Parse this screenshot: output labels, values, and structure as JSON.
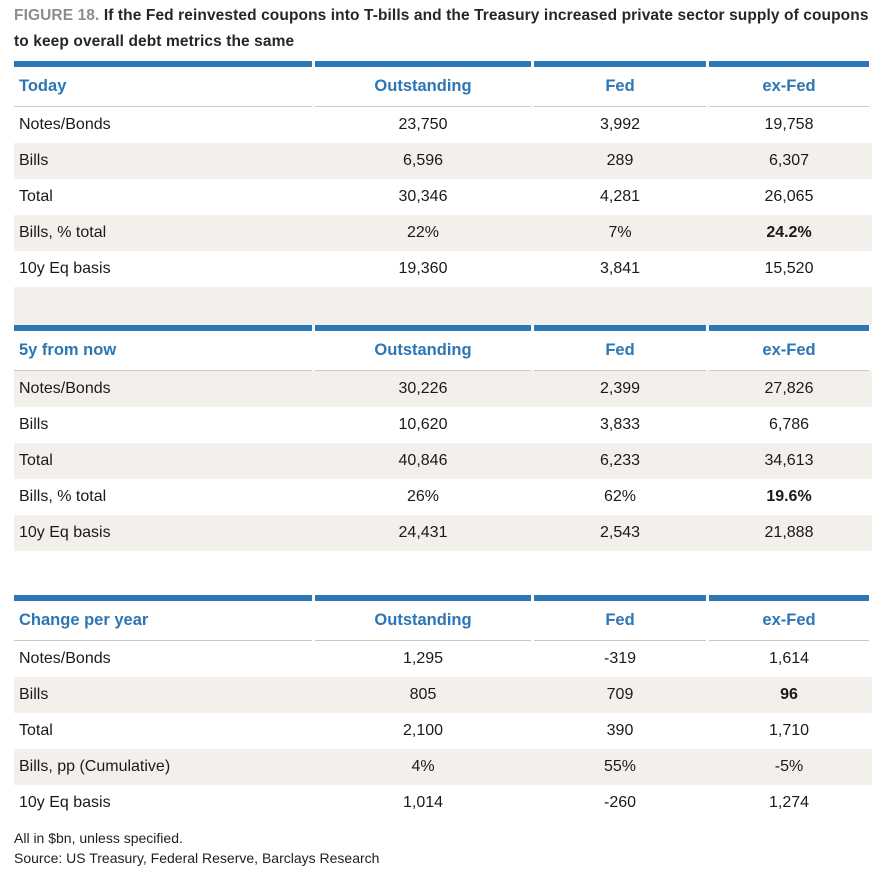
{
  "figure": {
    "label": "FIGURE 18.",
    "title": "If the Fed reinvested coupons into T-bills and the Treasury increased private sector supply of coupons to keep overall debt metrics the same"
  },
  "tables": [
    {
      "name": "Today",
      "columns": [
        "Outstanding",
        "Fed",
        "ex-Fed"
      ],
      "rows": [
        {
          "label": "Notes/Bonds",
          "values": [
            "23,750",
            "3,992",
            "19,758"
          ]
        },
        {
          "label": "Bills",
          "values": [
            "6,596",
            "289",
            "6,307"
          ]
        },
        {
          "label": "Total",
          "values": [
            "30,346",
            "4,281",
            "26,065"
          ]
        },
        {
          "label": "Bills, % total",
          "values": [
            "22%",
            "7%",
            "24.2%"
          ],
          "bold_value_index": 2
        },
        {
          "label": "10y Eq basis",
          "values": [
            "19,360",
            "3,841",
            "15,520"
          ]
        }
      ]
    },
    {
      "name": "5y from now",
      "columns": [
        "Outstanding",
        "Fed",
        "ex-Fed"
      ],
      "rows": [
        {
          "label": "Notes/Bonds",
          "values": [
            "30,226",
            "2,399",
            "27,826"
          ]
        },
        {
          "label": "Bills",
          "values": [
            "10,620",
            "3,833",
            "6,786"
          ]
        },
        {
          "label": "Total",
          "values": [
            "40,846",
            "6,233",
            "34,613"
          ]
        },
        {
          "label": "Bills, % total",
          "values": [
            "26%",
            "62%",
            "19.6%"
          ],
          "bold_value_index": 2
        },
        {
          "label": "10y Eq basis",
          "values": [
            "24,431",
            "2,543",
            "21,888"
          ]
        }
      ]
    },
    {
      "name": "Change per year",
      "columns": [
        "Outstanding",
        "Fed",
        "ex-Fed"
      ],
      "rows": [
        {
          "label": "Notes/Bonds",
          "values": [
            "1,295",
            "-319",
            "1,614"
          ]
        },
        {
          "label": "Bills",
          "values": [
            "805",
            "709",
            "96"
          ],
          "bold_value_index": 2
        },
        {
          "label": "Total",
          "values": [
            "2,100",
            "390",
            "1,710"
          ]
        },
        {
          "label": "Bills, pp (Cumulative)",
          "values": [
            "4%",
            "55%",
            "-5%"
          ]
        },
        {
          "label": "10y Eq basis",
          "values": [
            "1,014",
            "-260",
            "1,274"
          ]
        }
      ]
    }
  ],
  "footnotes": {
    "note": "All in $bn, unless specified.",
    "source": "Source: US Treasury, Federal Reserve, Barclays Research"
  },
  "colors": {
    "accent_blue": "#2c76b5",
    "stripe_beige": "#f3f0ec",
    "rule_gray": "#c9c9c9",
    "figure_label_gray": "#8c8c8c",
    "text": "#1a1a1a"
  }
}
